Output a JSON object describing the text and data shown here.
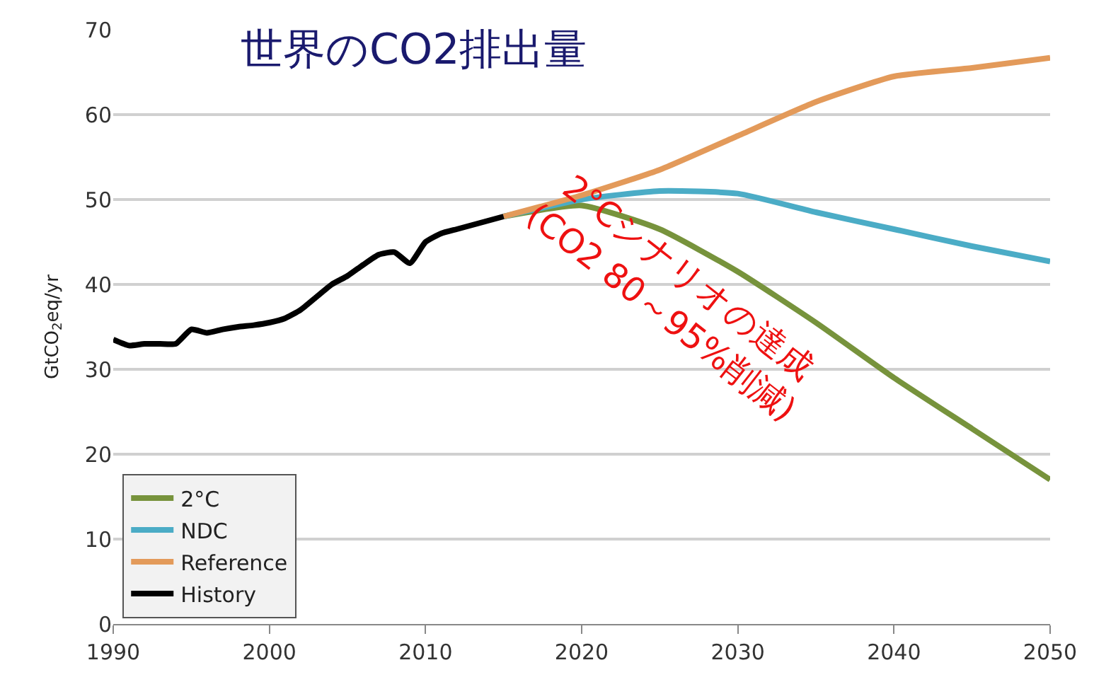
{
  "chart_data": {
    "type": "line",
    "title": "世界のCO2排出量",
    "ylabel": "GtCO$_{2}$eq/yr",
    "xlim": [
      1990,
      2050
    ],
    "xticks": [
      1990,
      2000,
      2010,
      2020,
      2030,
      2040,
      2050
    ],
    "ylim": [
      0,
      70
    ],
    "yticks": [
      0,
      10,
      20,
      30,
      40,
      50,
      60,
      70
    ],
    "grid": "y",
    "legend": "bottom left",
    "series": [
      {
        "name": "2°C",
        "color": "#77933c",
        "x": [
          2015,
          2020,
          2025,
          2030,
          2035,
          2040,
          2045,
          2050
        ],
        "values": [
          48,
          49.3,
          46.5,
          41.5,
          35.5,
          29,
          23,
          17
        ]
      },
      {
        "name": "NDC",
        "color": "#4bacc6",
        "x": [
          2015,
          2020,
          2025,
          2030,
          2035,
          2040,
          2045,
          2050
        ],
        "values": [
          48,
          50,
          51,
          50.7,
          48.5,
          46.5,
          44.5,
          42.7
        ]
      },
      {
        "name": "Reference",
        "color": "#e39a5a",
        "x": [
          2015,
          2020,
          2025,
          2030,
          2035,
          2040,
          2045,
          2050
        ],
        "values": [
          48,
          50.5,
          53.5,
          57.5,
          61.5,
          64.5,
          65.5,
          66.7
        ]
      },
      {
        "name": "History",
        "color": "#000000",
        "x": [
          1990,
          1991,
          1992,
          1993,
          1994,
          1995,
          1996,
          1997,
          1998,
          1999,
          2000,
          2001,
          2002,
          2003,
          2004,
          2005,
          2006,
          2007,
          2008,
          2009,
          2010,
          2011,
          2012,
          2013,
          2014,
          2015
        ],
        "values": [
          33.5,
          32.8,
          33,
          33,
          33,
          34.7,
          34.3,
          34.7,
          35,
          35.2,
          35.5,
          36,
          37,
          38.5,
          40,
          41,
          42.3,
          43.5,
          43.8,
          42.5,
          45,
          46,
          46.5,
          47,
          47.5,
          48
        ]
      }
    ],
    "annotations": [
      "2°Cシナリオの達成\n(CO2 80～95%削減)"
    ]
  }
}
